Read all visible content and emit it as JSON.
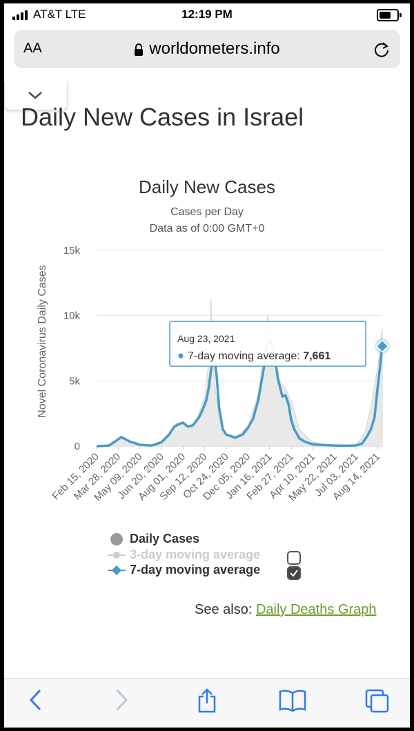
{
  "status_bar": {
    "carrier": "AT&T  LTE",
    "time": "12:19 PM"
  },
  "address_bar": {
    "text_size_label": "AA",
    "url": "worldometers.info"
  },
  "page": {
    "title": "Daily New Cases in Israel"
  },
  "chart_data": {
    "type": "area",
    "title": "Daily New Cases",
    "subtitle_lines": [
      "Cases per Day",
      "Data as of 0:00 GMT+0"
    ],
    "ylabel": "Novel Coronavirus Daily Cases",
    "ylim": [
      0,
      15000
    ],
    "yticks": [
      0,
      5000,
      10000,
      15000
    ],
    "ytick_labels": [
      "0",
      "5k",
      "10k",
      "15k"
    ],
    "xtick_labels": [
      "Feb 15, 2020",
      "Mar 28, 2020",
      "May 09, 2020",
      "Jun 20, 2020",
      "Aug 01, 2020",
      "Sep 12, 2020",
      "Oct 24, 2020",
      "Dec 05, 2020",
      "Jan 16, 2021",
      "Feb 27, 2021",
      "Apr 10, 2021",
      "May 22, 2021",
      "Jul 03, 2021",
      "Aug 14, 2021"
    ],
    "x_range": [
      "Feb 15, 2020",
      "Aug 23, 2021"
    ],
    "grid": true,
    "series": [
      {
        "name": "Daily Cases",
        "color": "#cccccc",
        "x": [
          "Feb 15, 2020",
          "Mar 15, 2020",
          "Apr 01, 2020",
          "Apr 15, 2020",
          "May 15, 2020",
          "Jun 15, 2020",
          "Jul 01, 2020",
          "Jul 20, 2020",
          "Aug 01, 2020",
          "Aug 20, 2020",
          "Sep 01, 2020",
          "Sep 12, 2020",
          "Sep 20, 2020",
          "Sep 24, 2020",
          "Oct 01, 2020",
          "Oct 10, 2020",
          "Oct 24, 2020",
          "Nov 15, 2020",
          "Dec 05, 2020",
          "Dec 25, 2020",
          "Jan 05, 2021",
          "Jan 12, 2021",
          "Jan 18, 2021",
          "Jan 25, 2021",
          "Feb 05, 2021",
          "Feb 15, 2021",
          "Feb 27, 2021",
          "Mar 15, 2021",
          "Apr 10, 2021",
          "May 22, 2021",
          "Jul 03, 2021",
          "Jul 20, 2021",
          "Aug 01, 2021",
          "Aug 14, 2021",
          "Aug 23, 2021"
        ],
        "values": [
          0,
          100,
          600,
          400,
          50,
          150,
          500,
          1800,
          1700,
          1400,
          2500,
          3800,
          6500,
          11300,
          5000,
          2000,
          800,
          800,
          1500,
          4000,
          7000,
          10000,
          8000,
          7000,
          5000,
          4500,
          3500,
          1300,
          300,
          50,
          100,
          1000,
          3000,
          6000,
          9000
        ]
      },
      {
        "name": "7-day moving average",
        "color": "#4a9ac6",
        "x": [
          "Feb 15, 2020",
          "Mar 10, 2020",
          "Mar 25, 2020",
          "Apr 03, 2020",
          "Apr 20, 2020",
          "May 10, 2020",
          "Jun 01, 2020",
          "Jun 20, 2020",
          "Jul 05, 2020",
          "Jul 15, 2020",
          "Jul 25, 2020",
          "Aug 01, 2020",
          "Aug 10, 2020",
          "Aug 20, 2020",
          "Sep 01, 2020",
          "Sep 08, 2020",
          "Sep 15, 2020",
          "Sep 20, 2020",
          "Sep 25, 2020",
          "Sep 30, 2020",
          "Oct 05, 2020",
          "Oct 10, 2020",
          "Oct 17, 2020",
          "Oct 24, 2020",
          "Nov 10, 2020",
          "Nov 25, 2020",
          "Dec 05, 2020",
          "Dec 15, 2020",
          "Dec 25, 2020",
          "Jan 05, 2021",
          "Jan 10, 2021",
          "Jan 17, 2021",
          "Jan 25, 2021",
          "Feb 01, 2021",
          "Feb 10, 2021",
          "Feb 16, 2021",
          "Feb 22, 2021",
          "Feb 27, 2021",
          "Mar 05, 2021",
          "Mar 15, 2021",
          "Mar 25, 2021",
          "Apr 05, 2021",
          "Apr 10, 2021",
          "May 01, 2021",
          "May 22, 2021",
          "Jun 15, 2021",
          "Jul 03, 2021",
          "Jul 15, 2021",
          "Jul 25, 2021",
          "Aug 01, 2021",
          "Aug 08, 2021",
          "Aug 14, 2021",
          "Aug 19, 2021",
          "Aug 23, 2021"
        ],
        "values": [
          0,
          50,
          450,
          700,
          350,
          100,
          50,
          300,
          900,
          1500,
          1700,
          1800,
          1500,
          1600,
          2200,
          2800,
          3500,
          4500,
          6000,
          7000,
          5500,
          3000,
          1300,
          900,
          650,
          900,
          1400,
          2100,
          3500,
          6000,
          7500,
          8200,
          7200,
          5200,
          3800,
          3900,
          3200,
          2000,
          1300,
          600,
          350,
          200,
          150,
          80,
          50,
          30,
          60,
          200,
          800,
          1300,
          2200,
          4500,
          6200,
          7661
        ]
      }
    ],
    "legend": [
      {
        "label": "Daily Cases",
        "enabled": true
      },
      {
        "label": "3-day moving average",
        "enabled": false
      },
      {
        "label": "7-day moving average",
        "enabled": true
      }
    ],
    "tooltip": {
      "date": "Aug 23, 2021",
      "label": "7-day moving average: ",
      "value": "7,661"
    }
  },
  "see_also": {
    "prefix": "See also: ",
    "link": "Daily Deaths Graph"
  }
}
